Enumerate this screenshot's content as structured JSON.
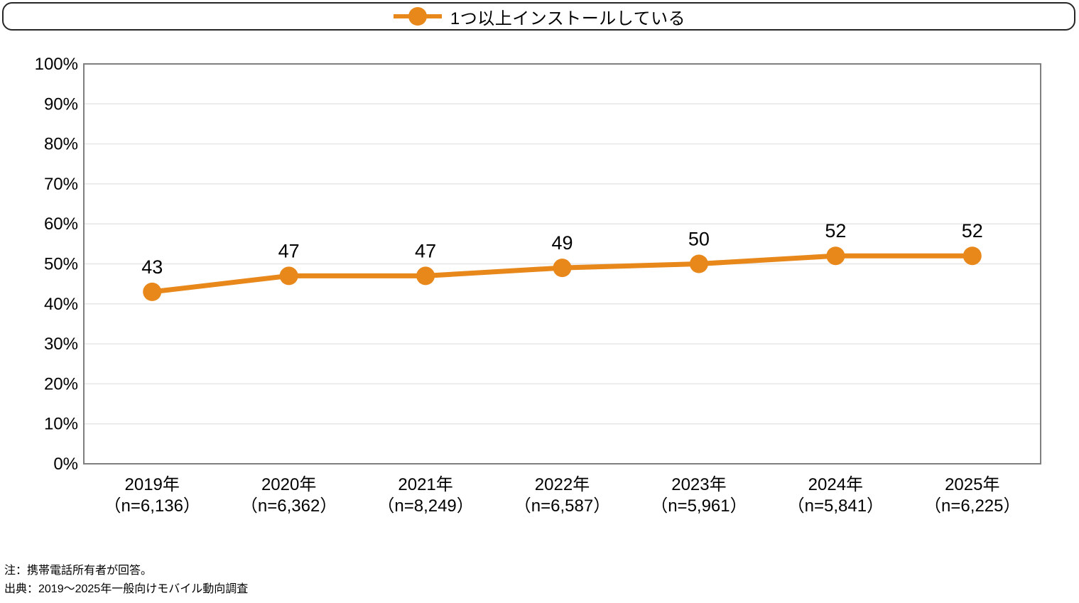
{
  "legend": {
    "label": "1つ以上インストールしている"
  },
  "colors": {
    "accent": "#E8871A",
    "grid": "#E6E6E6",
    "plot_border": "#7F7F7F",
    "text": "#000000"
  },
  "chart_data": {
    "type": "line",
    "title": "",
    "xlabel": "",
    "ylabel": "",
    "ylim": [
      0,
      100
    ],
    "y_tick_step": 10,
    "y_ticks": [
      "0%",
      "10%",
      "20%",
      "30%",
      "40%",
      "50%",
      "60%",
      "70%",
      "80%",
      "90%",
      "100%"
    ],
    "grid": true,
    "legend_position": "top",
    "categories": [
      {
        "year": "2019年",
        "n": "（n=6,136）"
      },
      {
        "year": "2020年",
        "n": "（n=6,362）"
      },
      {
        "year": "2021年",
        "n": "（n=8,249）"
      },
      {
        "year": "2022年",
        "n": "（n=6,587）"
      },
      {
        "year": "2023年",
        "n": "（n=5,961）"
      },
      {
        "year": "2024年",
        "n": "（n=5,841）"
      },
      {
        "year": "2025年",
        "n": "（n=6,225）"
      }
    ],
    "series": [
      {
        "name": "1つ以上インストールしている",
        "values": [
          43,
          47,
          47,
          49,
          50,
          52,
          52
        ]
      }
    ]
  },
  "notes": {
    "note1": "注：携帯電話所有者が回答。",
    "note2": "出典：2019～2025年一般向けモバイル動向調査"
  }
}
